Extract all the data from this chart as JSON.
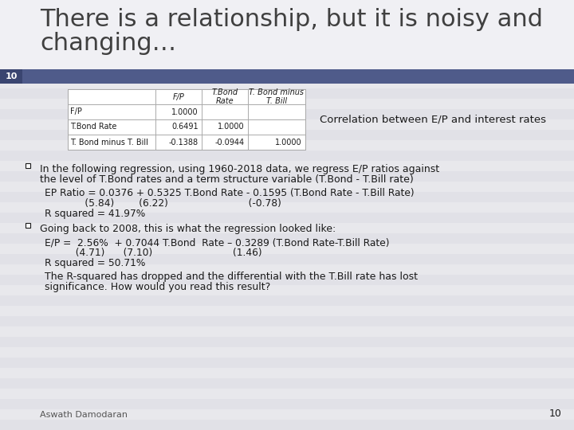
{
  "title_line1": "There is a relationship, but it is noisy and",
  "title_line2": "changing…",
  "title_fontsize": 22,
  "title_color": "#404040",
  "slide_number": "10",
  "slide_number_color": "#ffffff",
  "header_bar_color": "#4f5b8a",
  "background_color": "#e8e8ec",
  "stripe_color": "#dcdce4",
  "table_headers": [
    "",
    "F/P",
    "T.Bond\nRate",
    "T. Bond minus\nT. Bill"
  ],
  "table_rows": [
    [
      "F/P",
      "1.0000",
      "",
      ""
    ],
    [
      "T.Bond Rate",
      "0.6491",
      "1.0000",
      ""
    ],
    [
      "T. Bond minus T. Bill",
      "-0.1388",
      "-0.0944",
      "1.0000"
    ]
  ],
  "table_caption": "Correlation between E/P and interest rates",
  "bullet1_intro_l1": "In the following regression, using 1960-2018 data, we regress E/P ratios against",
  "bullet1_intro_l2": "the level of T.Bond rates and a term structure variable (T.Bond - T.Bill rate)",
  "bullet1_eq": "EP Ratio = 0.0376 + 0.5325 T.Bond Rate - 0.1595 (T.Bond Rate - T.Bill Rate)",
  "bullet1_tstat": "             (5.84)        (6.22)                          (-0.78)",
  "bullet1_r2": "R squared = 41.97%",
  "bullet2_intro": "Going back to 2008, this is what the regression looked like:",
  "bullet2_eq": "E/P =  2.56%  + 0.7044 T.Bond  Rate – 0.3289 (T.Bond Rate-T.Bill Rate)",
  "bullet2_tstat": "          (4.71)      (7.10)                          (1.46)",
  "bullet2_r2": "R squared = 50.71%",
  "bullet2_note_l1": "The R-squared has dropped and the differential with the T.Bill rate has lost",
  "bullet2_note_l2": "significance. How would you read this result?",
  "footer_text": "Aswath Damodaran",
  "footer_number": "10",
  "text_color": "#1a1a1a"
}
